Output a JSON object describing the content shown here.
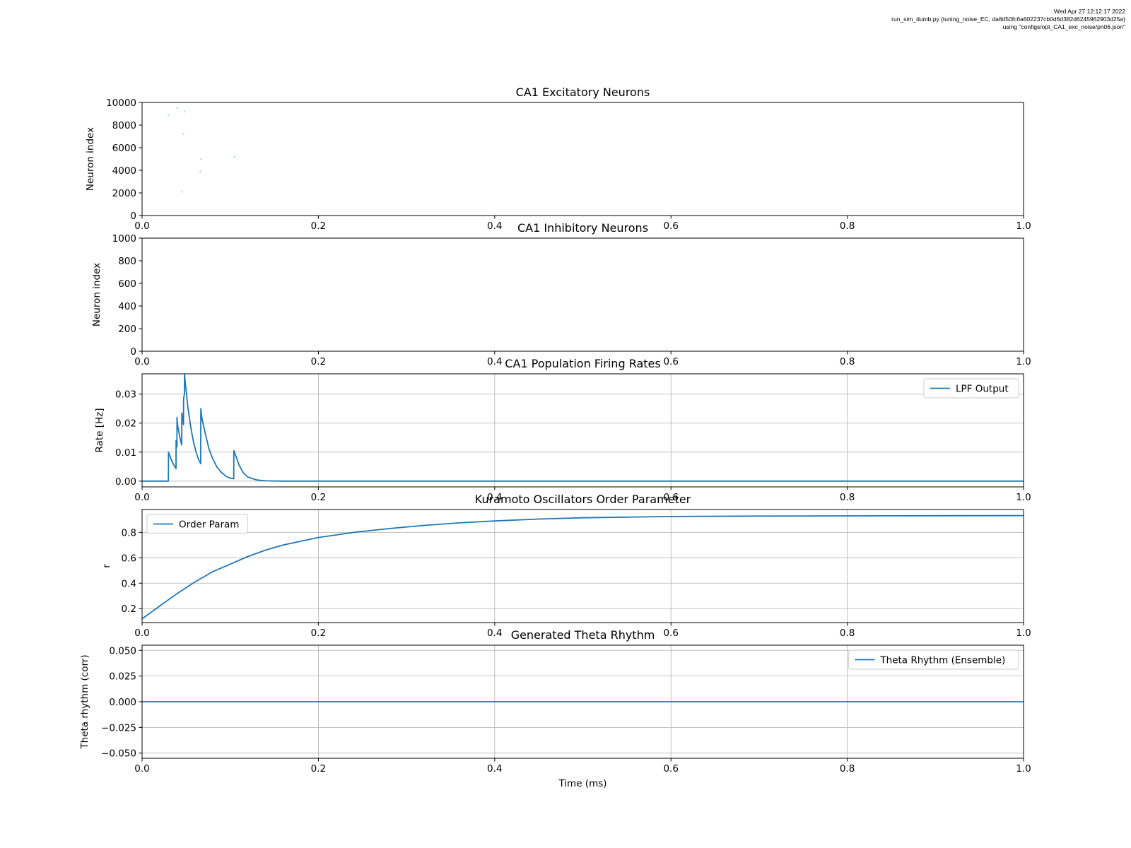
{
  "header": {
    "timestamp": "Wed Apr 27 12:12:17 2022",
    "script_line": "run_sim_dumb.py (tuning_noise_EC, da8d50fc6a602237cb0d6d382d6245962903d25a)",
    "config_line": "using \"configs/opt_CA1_exc_noise/pn06.json\""
  },
  "colors": {
    "series": "#1f77b4",
    "grid": "#b0b0b0",
    "raster": "#aac8e0"
  },
  "chart_data": [
    {
      "type": "scatter",
      "title": "CA1 Excitatory Neurons",
      "xlabel": "",
      "ylabel": "Neuron index",
      "xlim": [
        0,
        1
      ],
      "ylim": [
        0,
        10000
      ],
      "xticks": [
        "0.0",
        "0.2",
        "0.4",
        "0.6",
        "0.8",
        "1.0"
      ],
      "yticks": [
        "0",
        "2000",
        "4000",
        "6000",
        "8000",
        "10000"
      ],
      "grid": false,
      "points": [
        {
          "x": 0.03,
          "y": 8850
        },
        {
          "x": 0.04,
          "y": 9500
        },
        {
          "x": 0.048,
          "y": 9200
        },
        {
          "x": 0.047,
          "y": 7200
        },
        {
          "x": 0.067,
          "y": 5000
        },
        {
          "x": 0.105,
          "y": 5200
        },
        {
          "x": 0.066,
          "y": 3900
        },
        {
          "x": 0.045,
          "y": 2100
        }
      ]
    },
    {
      "type": "scatter",
      "title": "CA1 Inhibitory Neurons",
      "xlabel": "",
      "ylabel": "Neuron index",
      "xlim": [
        0,
        1
      ],
      "ylim": [
        0,
        1000
      ],
      "xticks": [
        "0.0",
        "0.2",
        "0.4",
        "0.6",
        "0.8",
        "1.0"
      ],
      "yticks": [
        "0",
        "200",
        "400",
        "600",
        "800",
        "1000"
      ],
      "grid": false,
      "points": []
    },
    {
      "type": "line",
      "title": "CA1 Population Firing Rates",
      "xlabel": "",
      "ylabel": "Rate [Hz]",
      "xlim": [
        0,
        1
      ],
      "ylim": [
        -0.002,
        0.037
      ],
      "xticks": [
        "0.0",
        "0.2",
        "0.4",
        "0.6",
        "0.8",
        "1.0"
      ],
      "yticks": [
        "0.00",
        "0.01",
        "0.02",
        "0.03"
      ],
      "grid": true,
      "legend_position": "top-right",
      "series": [
        {
          "name": "LPF Output",
          "x": [
            0,
            0.0298,
            0.0299,
            0.03,
            0.033,
            0.036,
            0.0385,
            0.0386,
            0.039,
            0.0395,
            0.0396,
            0.04,
            0.041,
            0.042,
            0.044,
            0.045,
            0.0451,
            0.046,
            0.047,
            0.0471,
            0.048,
            0.0481,
            0.049,
            0.05,
            0.052,
            0.055,
            0.058,
            0.061,
            0.064,
            0.0665,
            0.0666,
            0.067,
            0.068,
            0.072,
            0.076,
            0.08,
            0.085,
            0.09,
            0.095,
            0.1,
            0.104,
            0.1041,
            0.106,
            0.11,
            0.115,
            0.12,
            0.13,
            0.14,
            0.16,
            0.2,
            0.4,
            0.6,
            0.8,
            1.0
          ],
          "y": [
            0,
            0,
            0.005,
            0.01,
            0.0075,
            0.0055,
            0.0043,
            0.014,
            0.012,
            0.0118,
            0.022,
            0.02,
            0.018,
            0.0165,
            0.0135,
            0.0125,
            0.0235,
            0.021,
            0.0195,
            0.0285,
            0.03,
            0.037,
            0.034,
            0.031,
            0.0255,
            0.019,
            0.014,
            0.0102,
            0.0075,
            0.006,
            0.025,
            0.024,
            0.0215,
            0.016,
            0.011,
            0.0078,
            0.0048,
            0.003,
            0.0017,
            0.001,
            0.0008,
            0.0105,
            0.009,
            0.0055,
            0.0028,
            0.0014,
            0.0004,
            0.0001,
            0,
            0,
            0,
            0,
            0,
            0
          ]
        }
      ]
    },
    {
      "type": "line",
      "title": "Kuramoto Oscillators Order Parameter",
      "xlabel": "",
      "ylabel": "r",
      "xlim": [
        0,
        1
      ],
      "ylim": [
        0.09,
        0.98
      ],
      "xticks": [
        "0.0",
        "0.2",
        "0.4",
        "0.6",
        "0.8",
        "1.0"
      ],
      "yticks": [
        "0.2",
        "0.4",
        "0.6",
        "0.8"
      ],
      "grid": true,
      "legend_position": "top-left",
      "series": [
        {
          "name": "Order Param",
          "x": [
            0,
            0.02,
            0.04,
            0.06,
            0.08,
            0.1,
            0.12,
            0.14,
            0.16,
            0.18,
            0.2,
            0.24,
            0.28,
            0.32,
            0.36,
            0.4,
            0.45,
            0.5,
            0.55,
            0.6,
            0.7,
            0.8,
            0.9,
            1.0
          ],
          "y": [
            0.12,
            0.22,
            0.32,
            0.41,
            0.49,
            0.55,
            0.61,
            0.66,
            0.7,
            0.73,
            0.76,
            0.8,
            0.83,
            0.855,
            0.875,
            0.89,
            0.905,
            0.915,
            0.92,
            0.925,
            0.928,
            0.93,
            0.931,
            0.932
          ]
        }
      ]
    },
    {
      "type": "line",
      "title": "Generated Theta Rhythm",
      "xlabel": "Time (ms)",
      "ylabel": "Theta rhythm (corr)",
      "xlim": [
        0,
        1
      ],
      "ylim": [
        -0.055,
        0.055
      ],
      "xticks": [
        "0.0",
        "0.2",
        "0.4",
        "0.6",
        "0.8",
        "1.0"
      ],
      "yticks": [
        "−0.050",
        "−0.025",
        "0.000",
        "0.025",
        "0.050"
      ],
      "grid": true,
      "legend_position": "top-right",
      "series": [
        {
          "name": "Theta Rhythm (Ensemble)",
          "x": [
            0,
            1
          ],
          "y": [
            0,
            0
          ]
        }
      ]
    }
  ]
}
